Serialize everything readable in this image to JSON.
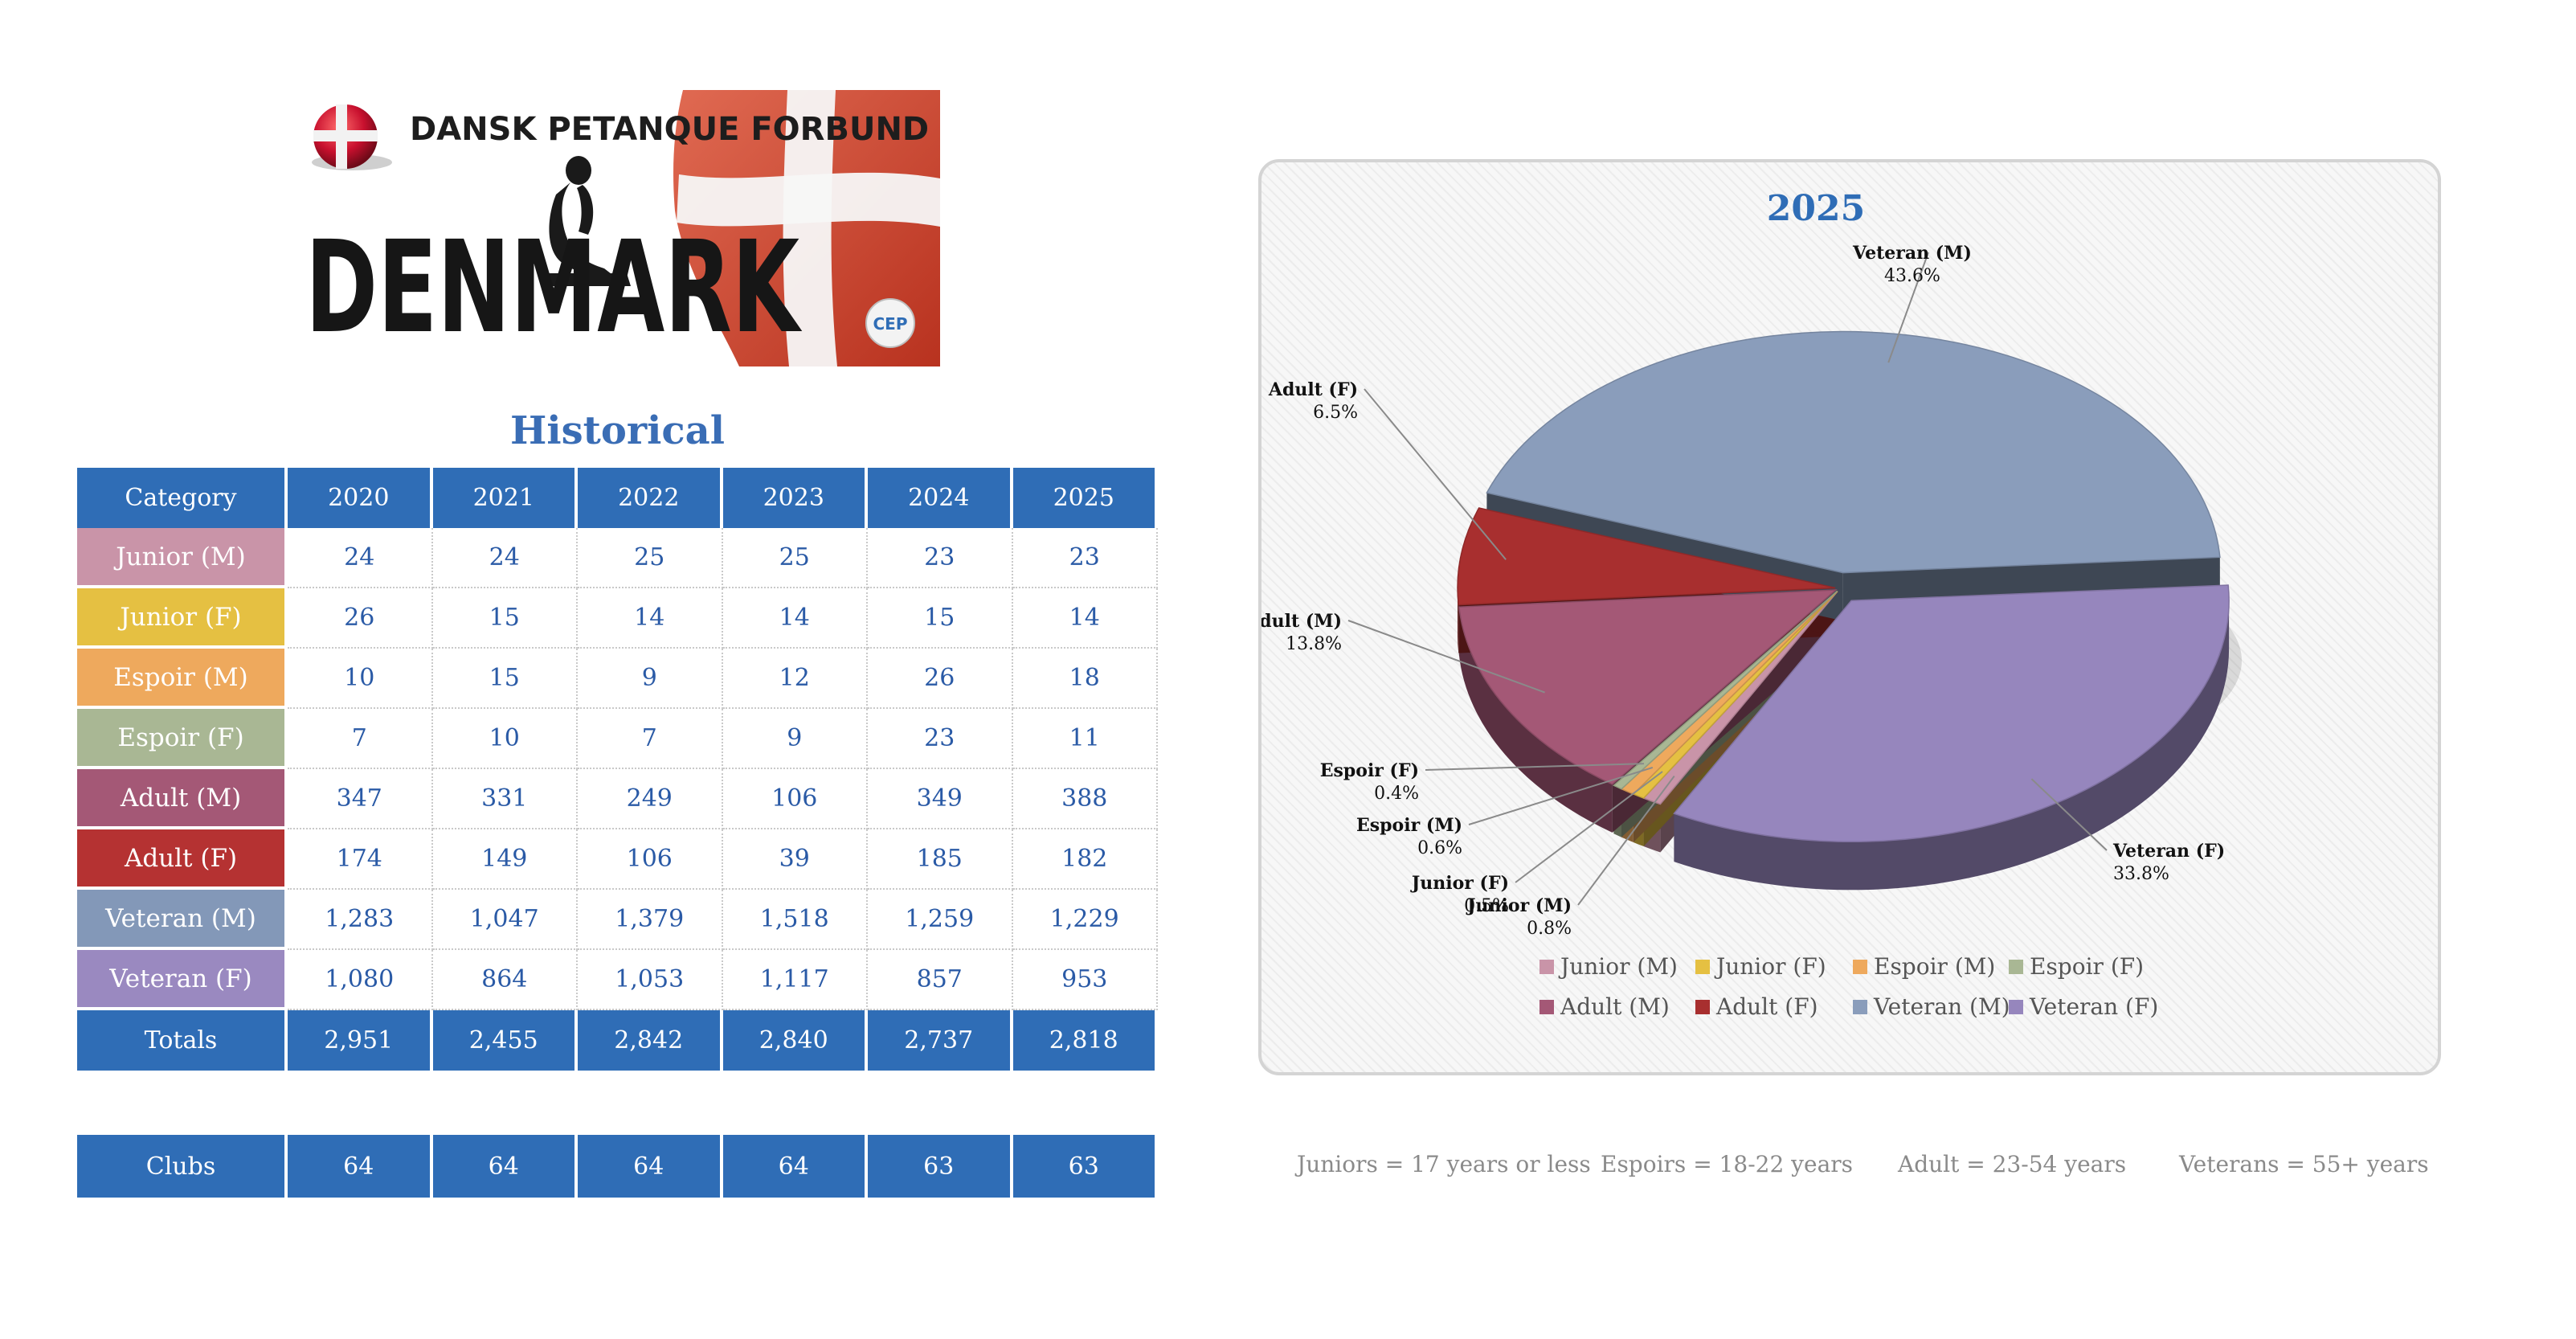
{
  "logo": {
    "org_name": "DANSK PETANQUE FORBUND",
    "country": "DENMARK",
    "emblem_text": "CEP",
    "flag_colors": {
      "red": "#c8102e",
      "white": "#ffffff"
    }
  },
  "historical": {
    "title": "Historical",
    "header": [
      "Category",
      "2020",
      "2021",
      "2022",
      "2023",
      "2024",
      "2025"
    ],
    "rows": [
      {
        "category": "Junior (M)",
        "color": "#c994a8",
        "values": [
          "24",
          "24",
          "25",
          "25",
          "23",
          "23"
        ]
      },
      {
        "category": "Junior (F)",
        "color": "#e5c042",
        "values": [
          "26",
          "15",
          "14",
          "14",
          "15",
          "14"
        ]
      },
      {
        "category": "Espoir (M)",
        "color": "#eea95d",
        "values": [
          "10",
          "15",
          "9",
          "12",
          "26",
          "18"
        ]
      },
      {
        "category": "Espoir (F)",
        "color": "#a9b794",
        "values": [
          "7",
          "10",
          "7",
          "9",
          "23",
          "11"
        ]
      },
      {
        "category": "Adult (M)",
        "color": "#a45876",
        "values": [
          "347",
          "331",
          "249",
          "106",
          "349",
          "388"
        ]
      },
      {
        "category": "Adult (F)",
        "color": "#b53232",
        "values": [
          "174",
          "149",
          "106",
          "39",
          "185",
          "182"
        ]
      },
      {
        "category": "Veteran (M)",
        "color": "#8398b8",
        "values": [
          "1,283",
          "1,047",
          "1,379",
          "1,518",
          "1,259",
          "1,229"
        ]
      },
      {
        "category": "Veteran (F)",
        "color": "#9a89c0",
        "values": [
          "1,080",
          "864",
          "1,053",
          "1,117",
          "857",
          "953"
        ]
      }
    ],
    "totals": {
      "label": "Totals",
      "values": [
        "2,951",
        "2,455",
        "2,842",
        "2,840",
        "2,737",
        "2,818"
      ]
    },
    "clubs": {
      "label": "Clubs",
      "values": [
        "64",
        "64",
        "64",
        "64",
        "63",
        "63"
      ]
    }
  },
  "chart_data": {
    "type": "pie",
    "title": "2025",
    "style": "3d-exploded",
    "slices": [
      {
        "name": "Junior (M)",
        "value": 0.8,
        "label": "0.8%",
        "color": "#c994a8"
      },
      {
        "name": "Junior (F)",
        "value": 0.5,
        "label": "0.5%",
        "color": "#e5c042"
      },
      {
        "name": "Espoir (M)",
        "value": 0.6,
        "label": "0.6%",
        "color": "#eea95d"
      },
      {
        "name": "Espoir (F)",
        "value": 0.4,
        "label": "0.4%",
        "color": "#a9b794"
      },
      {
        "name": "Adult (M)",
        "value": 13.8,
        "label": "13.8%",
        "color": "#a45876"
      },
      {
        "name": "Adult (F)",
        "value": 6.5,
        "label": "6.5%",
        "color": "#a82f2f"
      },
      {
        "name": "Veteran (M)",
        "value": 43.6,
        "label": "43.6%",
        "color": "#8a9dbb"
      },
      {
        "name": "Veteran (F)",
        "value": 33.8,
        "label": "33.8%",
        "color": "#9686bd"
      }
    ],
    "legend_position": "bottom"
  },
  "age_notes": [
    "Juniors = 17 years or less",
    "Espoirs = 18-22 years",
    "Adult = 23-54 years",
    "Veterans = 55+ years"
  ]
}
